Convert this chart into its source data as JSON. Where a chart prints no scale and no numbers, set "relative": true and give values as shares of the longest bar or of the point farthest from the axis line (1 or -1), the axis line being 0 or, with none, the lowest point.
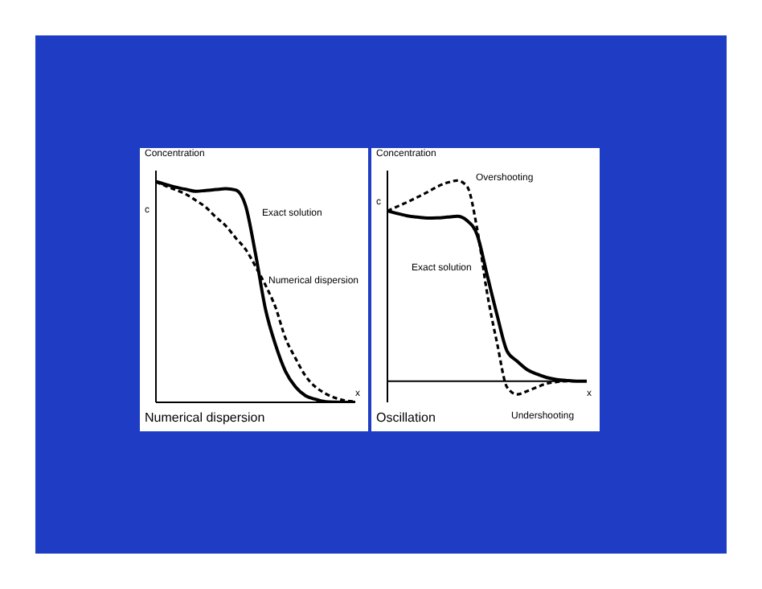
{
  "chart_data": [
    {
      "type": "line",
      "title": "Numerical dispersion",
      "ylabel": "Concentration",
      "xlabel": "x",
      "relative": true,
      "marker": "none",
      "annotations": [
        "c"
      ],
      "categories": [
        null,
        null,
        null,
        null,
        null,
        null,
        null,
        null,
        null,
        null,
        null,
        null,
        null,
        null,
        null,
        null,
        null,
        null,
        null,
        null,
        null
      ],
      "series": [
        {
          "name": "Exact solution",
          "color": "#000000",
          "line_style": "solid",
          "values": [
            1.0,
            0.987,
            0.975,
            0.965,
            0.956,
            0.96,
            0.964,
            0.968,
            0.962,
            0.89,
            0.67,
            0.42,
            0.26,
            0.14,
            0.07,
            0.03,
            0.014,
            0.003,
            0.001,
            0,
            0
          ]
        },
        {
          "name": "Numerical dispersion",
          "color": "#000000",
          "line_style": "dashed",
          "values": [
            1.0,
            0.98,
            0.962,
            0.943,
            0.915,
            0.884,
            0.84,
            0.8,
            0.745,
            0.693,
            0.615,
            0.53,
            0.43,
            0.29,
            0.2,
            0.12,
            0.07,
            0.04,
            0.02,
            0.008,
            0.003
          ]
        }
      ]
    },
    {
      "type": "line",
      "title": "Oscillation",
      "ylabel": "Concentration",
      "xlabel": "x",
      "relative": true,
      "marker": "none",
      "annotations": [
        "c",
        "Overshooting",
        "Undershooting"
      ],
      "categories": [
        null,
        null,
        null,
        null,
        null,
        null,
        null,
        null,
        null,
        null,
        null,
        null,
        null,
        null,
        null,
        null,
        null,
        null,
        null,
        null,
        null
      ],
      "series": [
        {
          "name": "Exact solution",
          "color": "#000000",
          "line_style": "solid",
          "values": [
            0.849,
            0.836,
            0.824,
            0.818,
            0.813,
            0.814,
            0.818,
            0.822,
            0.8,
            0.73,
            0.53,
            0.33,
            0.15,
            0.1,
            0.058,
            0.035,
            0.018,
            0.008,
            0.003,
            0,
            0
          ]
        },
        {
          "color": "#000000",
          "line_style": "dashed",
          "values": [
            0.849,
            0.871,
            0.893,
            0.917,
            0.942,
            0.97,
            0.99,
            1.0,
            0.97,
            0.76,
            0.44,
            0.19,
            -0.03,
            -0.066,
            -0.05,
            -0.03,
            -0.012,
            -0.004,
            0,
            0,
            null
          ]
        }
      ]
    }
  ]
}
